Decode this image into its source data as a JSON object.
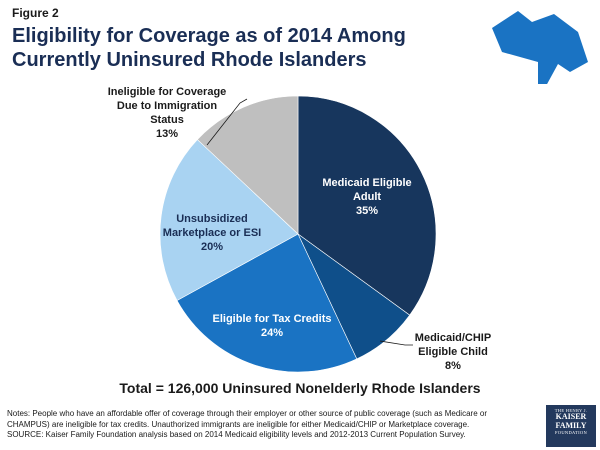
{
  "figure_label": "Figure 2",
  "chart_data": {
    "type": "pie",
    "title": "Eligibility for Coverage as of 2014 Among Currently Uninsured Rhode Islanders",
    "slices": [
      {
        "name_lines": [
          "Medicaid Eligible",
          "Adult"
        ],
        "value": 35,
        "label": "35%",
        "color": "#17365d"
      },
      {
        "name_lines": [
          "Medicaid/CHIP",
          "Eligible Child"
        ],
        "value": 8,
        "label": "8%",
        "color": "#0f4f8a"
      },
      {
        "name_lines": [
          "Eligible for Tax Credits"
        ],
        "value": 24,
        "label": "24%",
        "color": "#1a73c3"
      },
      {
        "name_lines": [
          "Unsubsidized",
          "Marketplace or ESI"
        ],
        "value": 20,
        "label": "20%",
        "color": "#a9d3f2"
      },
      {
        "name_lines": [
          "Ineligible for Coverage",
          "Due to Immigration",
          "Status"
        ],
        "value": 13,
        "label": "13%",
        "color": "#bfbfbf"
      }
    ],
    "total_label": "Total = 126,000 Uninsured Nonelderly Rhode Islanders"
  },
  "notes": [
    "Notes: People who have an affordable offer of coverage through their employer or other source of public coverage (such as Medicare or CHAMPUS) are ineligible for tax credits. Unauthorized immigrants are ineligible for either Medicaid/CHIP or Marketplace coverage.",
    "SOURCE: Kaiser Family Foundation analysis based on 2014 Medicaid eligibility levels and 2012-2013 Current Population Survey."
  ],
  "logo": {
    "line1": "THE HENRY J.",
    "line2": "KAISER",
    "line3": "FAMILY",
    "line4": "FOUNDATION"
  },
  "map_color": "#1a73c3"
}
